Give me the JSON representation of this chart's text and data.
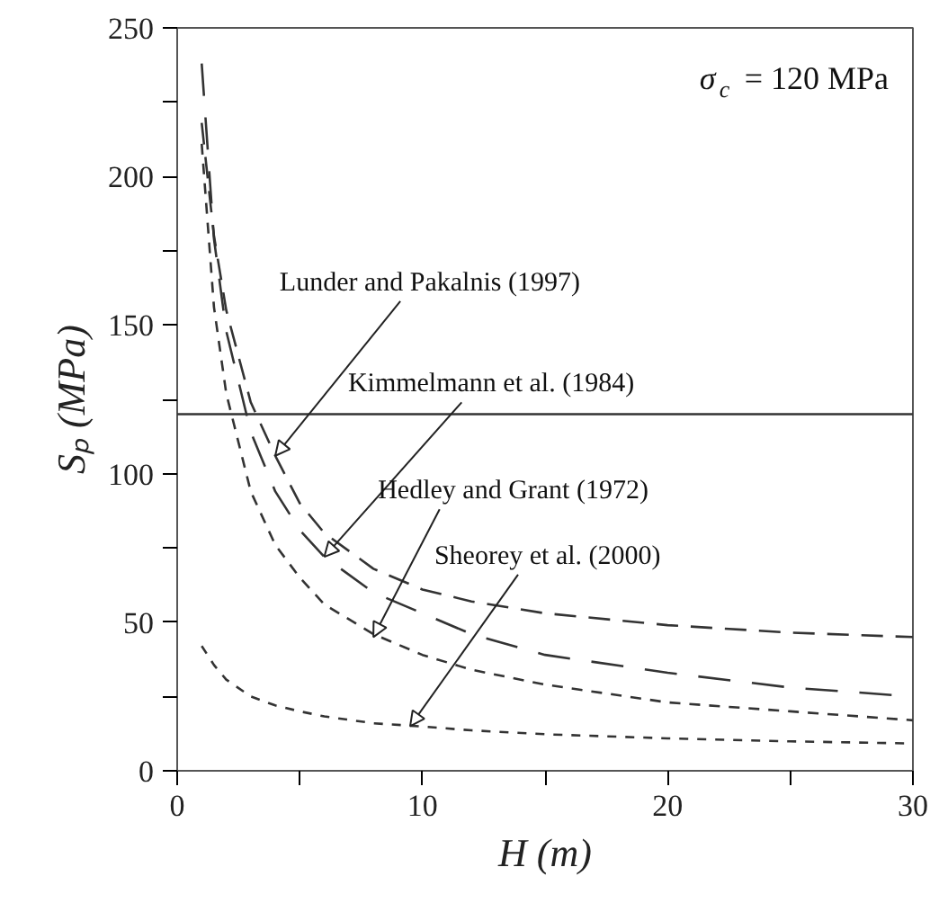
{
  "chart_data": {
    "type": "line",
    "xlabel": "H (m)",
    "ylabel": "Sₚ (MPa)",
    "x": [
      1,
      1.5,
      2,
      3,
      4,
      5,
      6,
      8,
      10,
      12,
      15,
      20,
      25,
      30
    ],
    "series": [
      {
        "color": "#333333",
        "line_style": "dashed",
        "values": [
          218,
          180,
          155,
          124,
          106,
          90,
          80,
          68,
          61,
          57,
          53,
          49,
          46.5,
          45
        ]
      },
      {
        "color": "#333333",
        "line_style": "dashed",
        "values": [
          238,
          179,
          148,
          114,
          94,
          81,
          72,
          60,
          53,
          46,
          39,
          33,
          28,
          25
        ]
      },
      {
        "color": "#333333",
        "line_style": "dotted",
        "values": [
          211,
          156,
          127,
          94,
          76,
          65,
          56,
          46,
          39,
          34,
          29,
          23,
          20,
          17
        ]
      },
      {
        "color": "#333333",
        "line_style": "dotted",
        "values": [
          42,
          35.6,
          30.7,
          25,
          22,
          20,
          18.3,
          16,
          14.9,
          13.6,
          12.3,
          10.9,
          9.9,
          9.2
        ]
      }
    ],
    "xlim": [
      0,
      30
    ],
    "ylim": [
      0,
      250
    ],
    "xticks": [
      0,
      {
        "value": 5,
        "label": null
      },
      10,
      {
        "value": 15,
        "label": null
      },
      20,
      {
        "value": 25,
        "label": null
      },
      30
    ],
    "yticks": [
      0,
      {
        "value": 25,
        "label": null
      },
      50,
      {
        "value": 75,
        "label": null
      },
      100,
      {
        "value": 125,
        "label": null
      },
      150,
      {
        "value": 175,
        "label": null
      },
      200,
      {
        "value": 225,
        "label": null
      },
      250
    ],
    "ref_lines": [
      {
        "axis": "y",
        "value": 120,
        "color": "#333333"
      }
    ],
    "annotations": [
      {
        "text": "Lunder and Pakalnis (1997)",
        "x": 4,
        "y": 106
      },
      {
        "text": "Kimmelmann et al. (1984)",
        "x": 6,
        "y": 72
      },
      {
        "text": "Hedley and Grant (1972)",
        "x": 8,
        "y": 45
      },
      {
        "text": "Sheorey et al. (2000)",
        "x": 9.5,
        "y": 15
      },
      "σ$_{c}$ = 120 MPa"
    ],
    "grid": false
  }
}
